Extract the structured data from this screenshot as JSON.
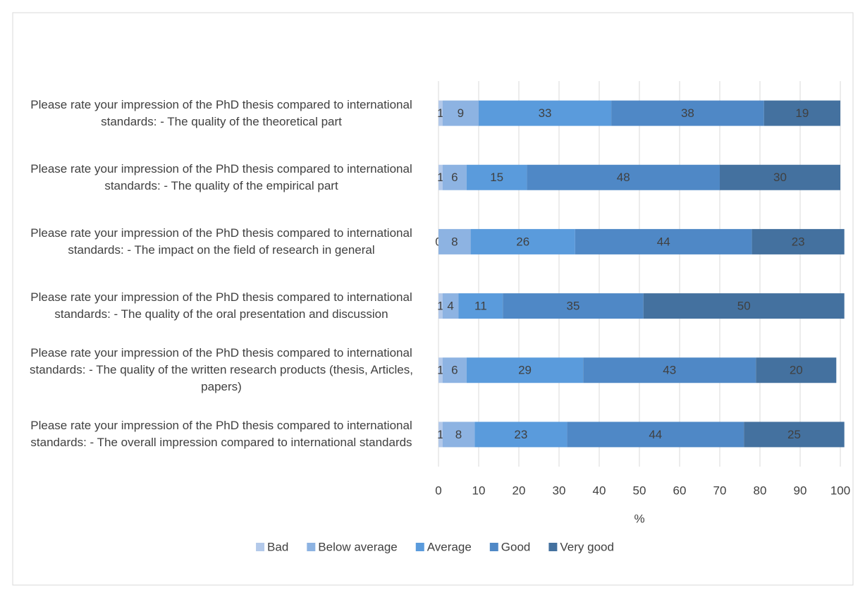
{
  "chart_data": {
    "type": "stacked-barh",
    "categories": [
      "Please rate your impression of the PhD thesis compared to international standards: - The quality of the theoretical part",
      "Please rate your impression of the PhD thesis compared to international standards: - The quality of the empirical part",
      "Please rate your impression of the PhD thesis compared to international standards: - The impact on the field of research in general",
      "Please rate your impression of the PhD thesis compared to international standards: - The quality of the oral presentation and discussion",
      "Please rate your impression of the PhD thesis compared to international standards: - The quality of the written research products (thesis, Articles, papers)",
      "Please rate your impression of the PhD thesis compared to international standards: - The overall impression compared to international standards"
    ],
    "series": [
      {
        "name": "Bad",
        "color": "#b3c9ea",
        "values": [
          1,
          1,
          0,
          1,
          1,
          1
        ]
      },
      {
        "name": "Below average",
        "color": "#8db3e2",
        "values": [
          9,
          6,
          8,
          4,
          6,
          8
        ]
      },
      {
        "name": "Average",
        "color": "#5a9bdc",
        "values": [
          33,
          15,
          26,
          11,
          29,
          23
        ]
      },
      {
        "name": "Good",
        "color": "#4f88c6",
        "values": [
          38,
          48,
          44,
          35,
          43,
          44
        ]
      },
      {
        "name": "Very good",
        "color": "#44719f",
        "values": [
          19,
          30,
          23,
          50,
          20,
          25
        ]
      }
    ],
    "xlabel": "%",
    "xlim": [
      0,
      100
    ],
    "xticks": [
      0,
      10,
      20,
      30,
      40,
      50,
      60,
      70,
      80,
      90,
      100
    ],
    "grid": true,
    "legend": "bottom"
  }
}
